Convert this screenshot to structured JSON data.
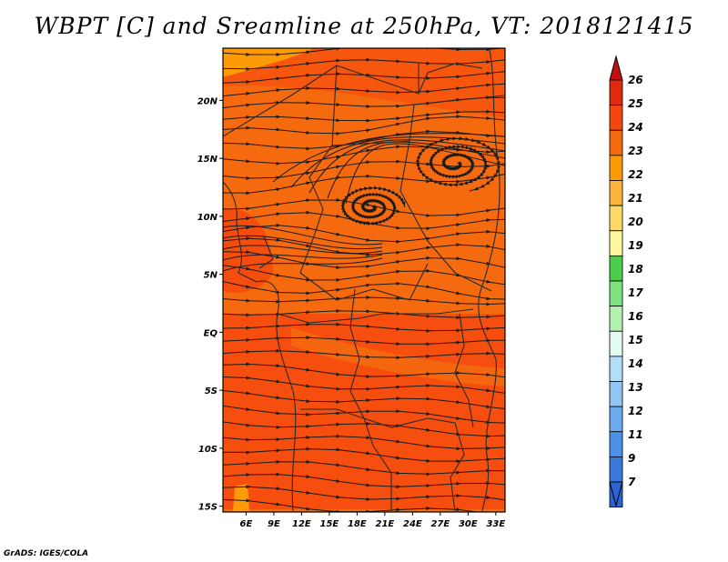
{
  "title": "WBPT [C] and Sreamline at 250hPa, VT: 2018121415",
  "credit": "GrADS: IGES/COLA",
  "map": {
    "lat_labels": [
      "20N",
      "15N",
      "10N",
      "5N",
      "EQ",
      "5S",
      "10S",
      "15S"
    ],
    "lat_values": [
      20,
      15,
      10,
      5,
      0,
      -5,
      -10,
      -15
    ],
    "lon_labels": [
      "6E",
      "9E",
      "12E",
      "15E",
      "18E",
      "21E",
      "24E",
      "27E",
      "30E",
      "33E"
    ],
    "lon_values": [
      6,
      9,
      12,
      15,
      18,
      21,
      24,
      27,
      30,
      33
    ],
    "lat_range": [
      -15.5,
      24.5
    ],
    "lon_range": [
      3.5,
      34
    ],
    "background_color": "#f56a0e",
    "streamline_color": "#1a1a1a",
    "border_color": "#2a2a2a"
  },
  "colorbar": {
    "labels": [
      "26",
      "25",
      "24",
      "23",
      "22",
      "21",
      "20",
      "19",
      "18",
      "17",
      "16",
      "15",
      "14",
      "13",
      "12",
      "11",
      "9",
      "7"
    ],
    "colors": [
      "#c30f0f",
      "#df2a10",
      "#f5460f",
      "#f56a0e",
      "#fd9b07",
      "#fdb43a",
      "#ffda68",
      "#fff6a0",
      "#4ccd4c",
      "#7ee37e",
      "#b3f2b3",
      "#e3fbf3",
      "#b4def8",
      "#90c6f4",
      "#6cacee",
      "#4c92e8",
      "#3a78dd",
      "#2a64d2"
    ]
  }
}
